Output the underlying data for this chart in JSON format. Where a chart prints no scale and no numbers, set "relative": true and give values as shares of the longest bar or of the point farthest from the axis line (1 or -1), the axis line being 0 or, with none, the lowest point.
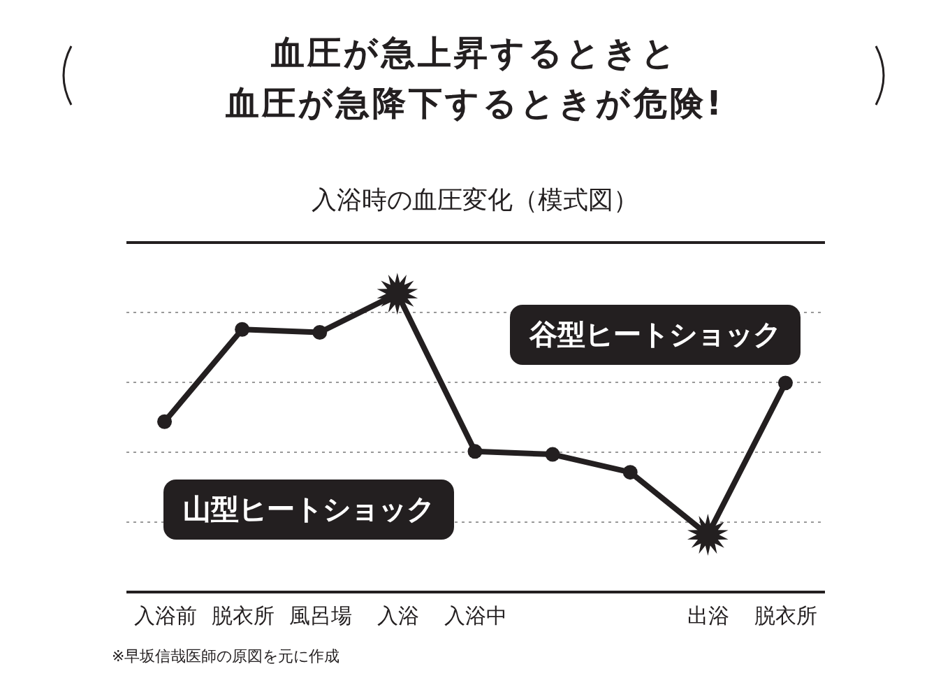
{
  "chart_data": {
    "type": "line",
    "title": "入浴時の血圧変化（模式図）",
    "categories": [
      "入浴前",
      "脱衣所",
      "風呂場",
      "入浴",
      "入浴中",
      null,
      null,
      "出浴",
      "脱衣所"
    ],
    "series": [
      {
        "color": "#231f20",
        "values": [
          0.57,
          0.88,
          0.87,
          1,
          0.47,
          0.46,
          0.4,
          0.19,
          0.7
        ]
      }
    ],
    "relative": true,
    "grid": "y",
    "marker": "circle",
    "line_style": "solid",
    "annotations": [
      "血圧が急上昇するときと",
      "血圧が急降下するときが危険!",
      "山型ヒートショック",
      "谷型ヒートショック",
      "※早坂信哉医師の原図を元に作成"
    ]
  }
}
